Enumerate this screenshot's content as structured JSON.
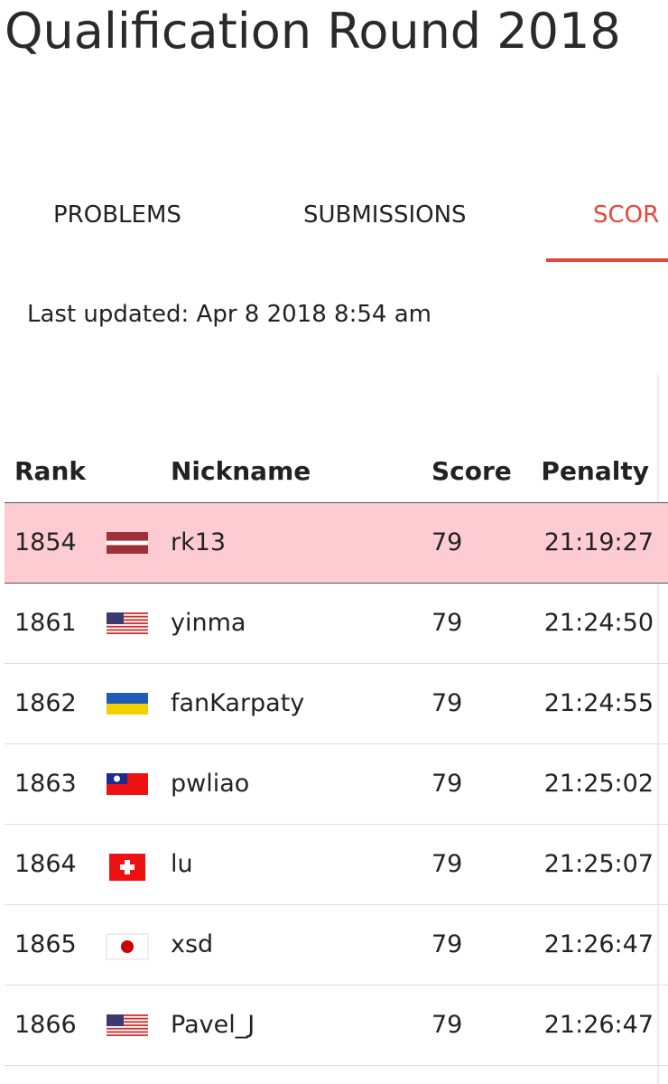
{
  "header": {
    "title": "Qualification Round 2018"
  },
  "tabs": [
    "PROBLEMS",
    "SUBMISSIONS",
    "SCOR"
  ],
  "last_updated": "Last updated: Apr 8 2018 8:54 am",
  "table": {
    "columns": [
      "Rank",
      "Nickname",
      "Score",
      "Penalty"
    ],
    "rows": [
      [
        "1854",
        "rk13",
        "79",
        "21:19:27"
      ],
      [
        "1861",
        "yinma",
        "79",
        "21:24:50"
      ],
      [
        "1862",
        "fanKarpaty",
        "79",
        "21:24:55"
      ],
      [
        "1863",
        "pwliao",
        "79",
        "21:25:02"
      ],
      [
        "1864",
        "lu",
        "79",
        "21:25:07"
      ],
      [
        "1865",
        "xsd",
        "79",
        "21:26:47"
      ],
      [
        "1866",
        "Pavel_J",
        "79",
        "21:26:47"
      ]
    ]
  }
}
